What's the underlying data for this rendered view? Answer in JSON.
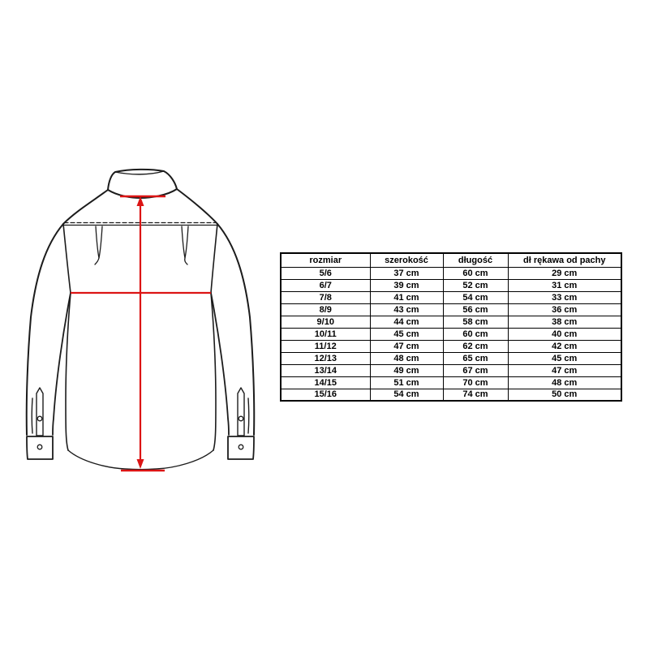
{
  "page": {
    "background_color": "#ffffff",
    "kind": "garment size chart"
  },
  "diagram": {
    "name": "shirt-back-technical-drawing",
    "description": "Back view line drawing of a long-sleeved shirt with collar, yoke stitch line, darts, buttoned cuffs and sleeve plackets",
    "outline_color": "#1c1c1c",
    "measurement_color": "#dc1414",
    "measurements": [
      {
        "id": "length",
        "type": "vertical-double-arrow",
        "maps_to_column": "długość"
      },
      {
        "id": "width",
        "type": "horizontal-line",
        "maps_to_column": "szerokość"
      }
    ]
  },
  "size_table": {
    "columns": [
      "rozmiar",
      "szerokość",
      "długość",
      "dł rękawa od pachy"
    ],
    "unit": "cm",
    "rows": [
      [
        "5/6",
        "37 cm",
        "60 cm",
        "29 cm"
      ],
      [
        "6/7",
        "39 cm",
        "52 cm",
        "31 cm"
      ],
      [
        "7/8",
        "41 cm",
        "54 cm",
        "33 cm"
      ],
      [
        "8/9",
        "43 cm",
        "56 cm",
        "36 cm"
      ],
      [
        "9/10",
        "44 cm",
        "58 cm",
        "38 cm"
      ],
      [
        "10/11",
        "45 cm",
        "60 cm",
        "40 cm"
      ],
      [
        "11/12",
        "47 cm",
        "62 cm",
        "42 cm"
      ],
      [
        "12/13",
        "48 cm",
        "65 cm",
        "45 cm"
      ],
      [
        "13/14",
        "49 cm",
        "67 cm",
        "47 cm"
      ],
      [
        "14/15",
        "51 cm",
        "70 cm",
        "48 cm"
      ],
      [
        "15/16",
        "54 cm",
        "74 cm",
        "50 cm"
      ]
    ]
  }
}
